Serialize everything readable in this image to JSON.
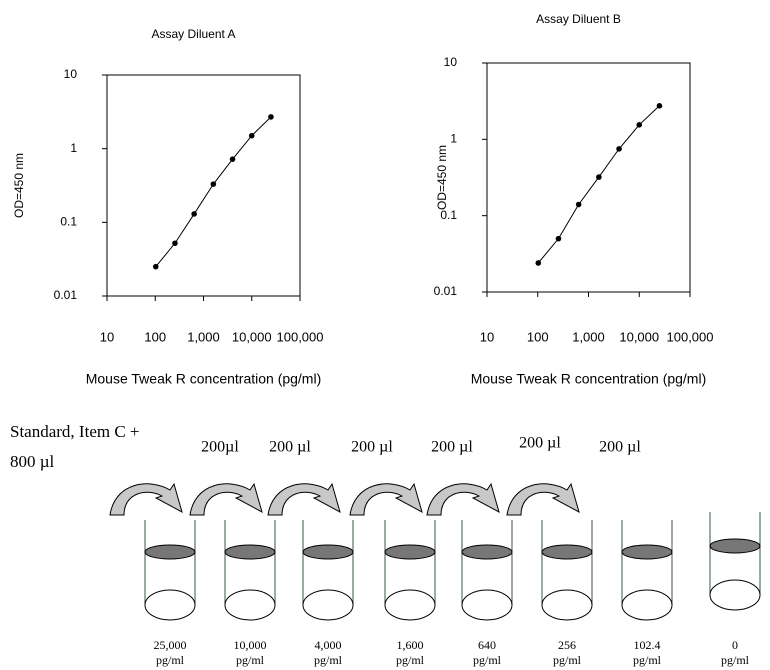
{
  "chart_data": [
    {
      "type": "line",
      "title": "Assay Diluent A",
      "x_label": "Mouse Tweak R concentration (pg/ml)",
      "y_label": "OD=450 nm",
      "x": [
        102.4,
        256,
        640,
        1600,
        4000,
        10000,
        25000
      ],
      "values": [
        0.025,
        0.052,
        0.13,
        0.33,
        0.72,
        1.5,
        2.7
      ],
      "color": "#000000",
      "xscale": "log",
      "yscale": "log",
      "xlim": [
        10,
        100000
      ],
      "ylim": [
        0.01,
        10
      ],
      "xticks": [
        10,
        100,
        {
          "value": 1000,
          "label": "1,000"
        },
        {
          "value": 10000,
          "label": "10,000"
        },
        {
          "value": 100000,
          "label": "100,000"
        }
      ],
      "yticks": [
        0.01,
        0.1,
        1,
        10
      ],
      "grid": false
    },
    {
      "type": "line",
      "title": "Assay Diluent B",
      "x_label": "Mouse Tweak R concentration (pg/ml)",
      "y_label": "OD=450 nm",
      "x": [
        102.4,
        256,
        640,
        1600,
        4000,
        10000,
        25000
      ],
      "values": [
        0.024,
        0.05,
        0.14,
        0.32,
        0.75,
        1.55,
        2.75
      ],
      "color": "#000000",
      "xscale": "log",
      "yscale": "log",
      "xlim": [
        10,
        100000
      ],
      "ylim": [
        0.01,
        10
      ],
      "xticks": [
        10,
        100,
        {
          "value": 1000,
          "label": "1,000"
        },
        {
          "value": 10000,
          "label": "10,000"
        },
        {
          "value": 100000,
          "label": "100,000"
        }
      ],
      "yticks": [
        0.01,
        0.1,
        1,
        10
      ],
      "grid": false
    }
  ],
  "diagram": {
    "start_label": [
      "Standard, Item C +",
      "800 µl"
    ],
    "transfers": [
      "200µl",
      "200 µl",
      "200 µl",
      "200 µl",
      "200 µl",
      "200 µl"
    ],
    "tubes": [
      {
        "conc": "25,000",
        "unit": "pg/ml"
      },
      {
        "conc": "10,000",
        "unit": "pg/ml"
      },
      {
        "conc": "4,000",
        "unit": "pg/ml"
      },
      {
        "conc": "1,600",
        "unit": "pg/ml"
      },
      {
        "conc": "640",
        "unit": "pg/ml"
      },
      {
        "conc": "256",
        "unit": "pg/ml"
      },
      {
        "conc": "102.4",
        "unit": "pg/ml"
      },
      {
        "conc": "0",
        "unit": "pg/ml"
      }
    ]
  }
}
